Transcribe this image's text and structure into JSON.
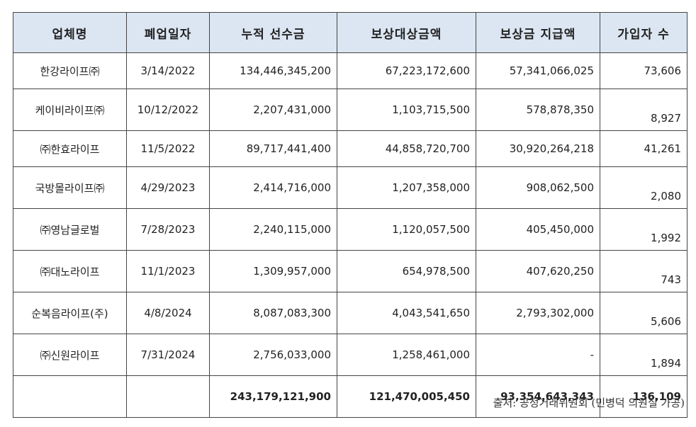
{
  "table": {
    "headers": [
      "업체명",
      "폐업일자",
      "누적 선수금",
      "보상대상금액",
      "보상금 지급액",
      "가입자 수"
    ],
    "rows": [
      [
        "한강라이프㈜",
        "3/14/2022",
        "134,446,345,200",
        "67,223,172,600",
        "57,341,066,025",
        "73,606"
      ],
      [
        "케이비라이프㈜",
        "10/12/2022",
        "2,207,431,000",
        "1,103,715,500",
        "578,878,350",
        "8,927"
      ],
      [
        "㈜한효라이프",
        "11/5/2022",
        "89,717,441,400",
        "44,858,720,700",
        "30,920,264,218",
        "41,261"
      ],
      [
        "국방몰라이프㈜",
        "4/29/2023",
        "2,414,716,000",
        "1,207,358,000",
        "908,062,500",
        "2,080"
      ],
      [
        "㈜영남글로벌",
        "7/28/2023",
        "2,240,115,000",
        "1,120,057,500",
        "405,450,000",
        "1,992"
      ],
      [
        "㈜대노라이프",
        "11/1/2023",
        "1,309,957,000",
        "654,978,500",
        "407,620,250",
        "743"
      ],
      [
        "순복음라이프(주)",
        "4/8/2024",
        "8,087,083,300",
        "4,043,541,650",
        "2,793,302,000",
        "5,606"
      ],
      [
        "㈜신원라이프",
        "7/31/2024",
        "2,756,033,000",
        "1,258,461,000",
        "-",
        "1,894"
      ]
    ],
    "total": [
      "",
      "",
      "243,179,121,900",
      "121,470,005,450",
      "93,354,643,343",
      "136,109"
    ]
  },
  "source": "출처: 공정거래위원회 (민병덕 의원실 가공)"
}
